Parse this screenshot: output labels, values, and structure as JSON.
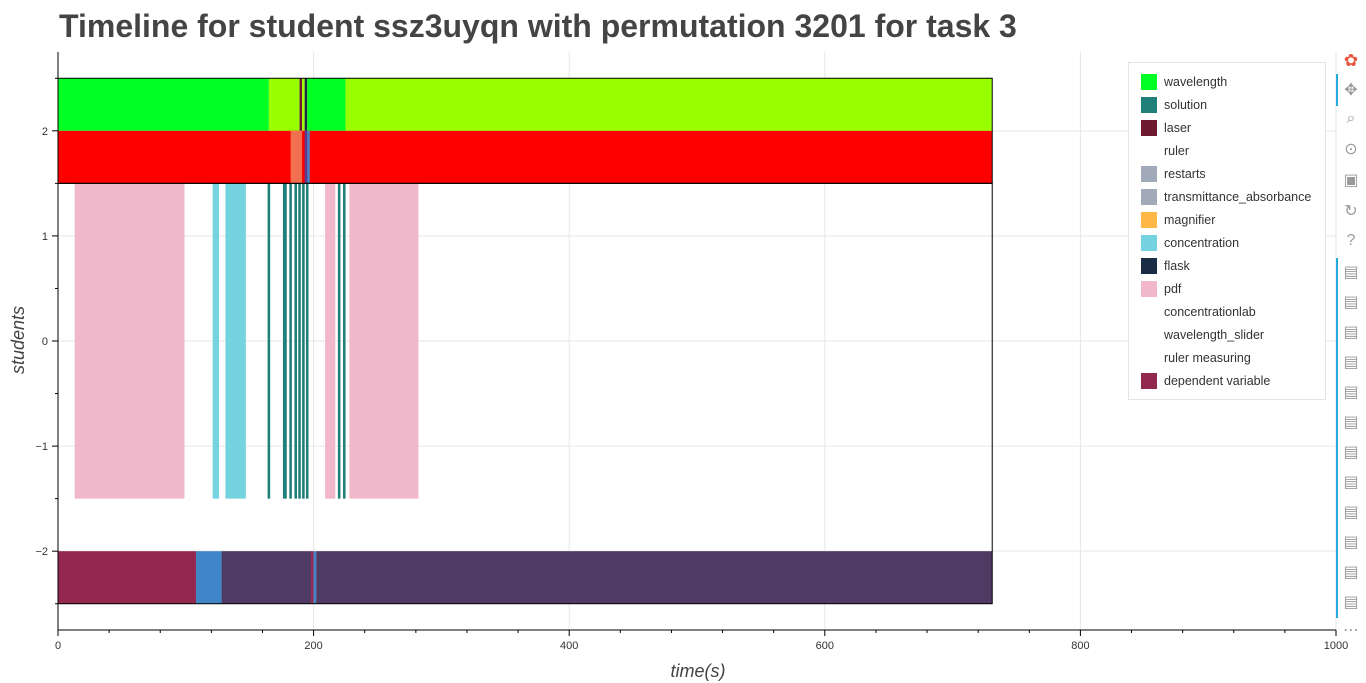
{
  "chart_data": {
    "type": "timeline",
    "title": "Timeline for student ssz3uyqn with permutation 3201 for task 3",
    "xlabel": "time(s)",
    "ylabel": "students",
    "xlim": [
      0,
      1000
    ],
    "ylim": [
      -2.75,
      2.75
    ],
    "x_ticks": [
      0,
      200,
      400,
      600,
      800,
      1000
    ],
    "y_ticks": [
      2,
      1,
      0,
      -1,
      -2
    ],
    "y_tick_labels": [
      "2",
      "1",
      "0",
      "−1",
      "−2"
    ],
    "grid": true,
    "legend_position": "top-right",
    "colors": {
      "wavelength": "#00ff22",
      "wavelength_alt": "#99ff00",
      "red_band": "#ff0000",
      "solution": "#1e8078",
      "laser": "#6e1a30",
      "ruler": "#ffffff",
      "restarts": "#a0aab8",
      "transmittance_absorbance": "#a0aab8",
      "magnifier": "#ffb845",
      "concentration": "#74d3de",
      "flask": "#1b2d45",
      "pdf": "#f0b8ca",
      "dependent_variable": "#922850",
      "dependent_alt": "#4f3a63",
      "blue": "#3f85c8"
    },
    "legend": [
      {
        "label": "wavelength",
        "color": "#00ff22"
      },
      {
        "label": "solution",
        "color": "#1e8078"
      },
      {
        "label": "laser",
        "color": "#6e1a30"
      },
      {
        "label": "ruler",
        "color": "#ffffff"
      },
      {
        "label": "restarts",
        "color": "#a0aab8"
      },
      {
        "label": "transmittance_absorbance",
        "color": "#a0aab8"
      },
      {
        "label": "magnifier",
        "color": "#ffb845"
      },
      {
        "label": "concentration",
        "color": "#74d3de"
      },
      {
        "label": "flask",
        "color": "#1b2d45"
      },
      {
        "label": "pdf",
        "color": "#f0b8ca"
      },
      {
        "label": "concentrationlab",
        "color": "#ffffff"
      },
      {
        "label": "wavelength_slider",
        "color": "#ffffff"
      },
      {
        "label": "ruler measuring",
        "color": "#ffffff"
      },
      {
        "label": "dependent variable",
        "color": "#922850"
      }
    ],
    "bars": [
      {
        "row": "top",
        "start": 0,
        "end": 165,
        "y0": 2,
        "y1": 2.5,
        "color": "#00ff22"
      },
      {
        "row": "top",
        "start": 165,
        "end": 189,
        "y0": 2,
        "y1": 2.5,
        "color": "#99ff00"
      },
      {
        "row": "top",
        "start": 189,
        "end": 191,
        "y0": 2,
        "y1": 2.5,
        "color": "#6e1a30"
      },
      {
        "row": "top",
        "start": 191,
        "end": 193,
        "y0": 2,
        "y1": 2.5,
        "color": "#99ff00"
      },
      {
        "row": "top",
        "start": 193,
        "end": 195,
        "y0": 2,
        "y1": 2.5,
        "color": "#1b2d45"
      },
      {
        "row": "top",
        "start": 195,
        "end": 225,
        "y0": 2,
        "y1": 2.5,
        "color": "#00ff22"
      },
      {
        "row": "top",
        "start": 225,
        "end": 731,
        "y0": 2,
        "y1": 2.5,
        "color": "#99ff00"
      },
      {
        "row": "red",
        "start": 0,
        "end": 731,
        "y0": 1.5,
        "y1": 2,
        "color": "#ff0000"
      },
      {
        "row": "red",
        "start": 182,
        "end": 191,
        "y0": 1.5,
        "y1": 2,
        "color": "#f07050"
      },
      {
        "row": "red",
        "start": 193,
        "end": 195,
        "y0": 1.5,
        "y1": 2,
        "color": "#5a3a90"
      },
      {
        "row": "red",
        "start": 195,
        "end": 197,
        "y0": 1.5,
        "y1": 2,
        "color": "#3f85c8"
      },
      {
        "row": "mid",
        "start": 13,
        "end": 99,
        "y0": -1.5,
        "y1": 1.5,
        "color": "#f0b8ca"
      },
      {
        "row": "mid",
        "start": 121,
        "end": 126,
        "y0": -1.5,
        "y1": 1.5,
        "color": "#74d3de"
      },
      {
        "row": "mid",
        "start": 131,
        "end": 147,
        "y0": -1.5,
        "y1": 1.5,
        "color": "#74d3de"
      },
      {
        "row": "mid",
        "start": 164,
        "end": 166,
        "y0": -1.5,
        "y1": 1.5,
        "color": "#1e8078"
      },
      {
        "row": "mid",
        "start": 176,
        "end": 179,
        "y0": -1.5,
        "y1": 1.5,
        "color": "#1e8078"
      },
      {
        "row": "mid",
        "start": 181,
        "end": 183,
        "y0": -1.5,
        "y1": 1.5,
        "color": "#1e8078"
      },
      {
        "row": "mid",
        "start": 185,
        "end": 187,
        "y0": -1.5,
        "y1": 1.5,
        "color": "#1e8078"
      },
      {
        "row": "mid",
        "start": 188,
        "end": 190,
        "y0": -1.5,
        "y1": 1.5,
        "color": "#1e8078"
      },
      {
        "row": "mid",
        "start": 191,
        "end": 193,
        "y0": -1.5,
        "y1": 1.5,
        "color": "#1e8078"
      },
      {
        "row": "mid",
        "start": 194,
        "end": 196,
        "y0": -1.5,
        "y1": 1.5,
        "color": "#1e8078"
      },
      {
        "row": "mid",
        "start": 209,
        "end": 217,
        "y0": -1.5,
        "y1": 1.5,
        "color": "#f0b8ca"
      },
      {
        "row": "mid",
        "start": 219,
        "end": 221,
        "y0": -1.5,
        "y1": 1.5,
        "color": "#1e8078"
      },
      {
        "row": "mid",
        "start": 223,
        "end": 225,
        "y0": -1.5,
        "y1": 1.5,
        "color": "#1e8078"
      },
      {
        "row": "mid",
        "start": 228,
        "end": 282,
        "y0": -1.5,
        "y1": 1.5,
        "color": "#f0b8ca"
      },
      {
        "row": "bottom",
        "start": 0,
        "end": 108,
        "y0": -2.5,
        "y1": -2,
        "color": "#922850"
      },
      {
        "row": "bottom",
        "start": 108,
        "end": 128,
        "y0": -2.5,
        "y1": -2,
        "color": "#3f85c8"
      },
      {
        "row": "bottom",
        "start": 128,
        "end": 198,
        "y0": -2.5,
        "y1": -2,
        "color": "#4f3a63"
      },
      {
        "row": "bottom",
        "start": 198,
        "end": 200,
        "y0": -2.5,
        "y1": -2,
        "color": "#922850"
      },
      {
        "row": "bottom",
        "start": 200,
        "end": 202,
        "y0": -2.5,
        "y1": -2,
        "color": "#3f85c8"
      },
      {
        "row": "bottom",
        "start": 202,
        "end": 731,
        "y0": -2.5,
        "y1": -2,
        "color": "#4f3a63"
      }
    ],
    "outlines": [
      {
        "start": 0,
        "end": 731,
        "y0": 1.5,
        "y1": 2.5
      },
      {
        "start": 0,
        "end": 731,
        "y0": -2.5,
        "y1": 1.5
      }
    ]
  },
  "toolbar": {
    "tools": [
      {
        "name": "bokeh-logo-icon",
        "glyph": "✿"
      },
      {
        "name": "pan-icon",
        "glyph": "✥"
      },
      {
        "name": "box-zoom-icon",
        "glyph": "⌕"
      },
      {
        "name": "wheel-zoom-icon",
        "glyph": "⊙"
      },
      {
        "name": "save-icon",
        "glyph": "▣"
      },
      {
        "name": "reset-icon",
        "glyph": "↻"
      },
      {
        "name": "help-icon",
        "glyph": "?"
      },
      {
        "name": "hover-icon",
        "glyph": "▤"
      },
      {
        "name": "hover-icon",
        "glyph": "▤"
      },
      {
        "name": "hover-icon",
        "glyph": "▤"
      },
      {
        "name": "hover-icon",
        "glyph": "▤"
      },
      {
        "name": "hover-icon",
        "glyph": "▤"
      },
      {
        "name": "hover-icon",
        "glyph": "▤"
      },
      {
        "name": "hover-icon",
        "glyph": "▤"
      },
      {
        "name": "hover-icon",
        "glyph": "▤"
      },
      {
        "name": "hover-icon",
        "glyph": "▤"
      },
      {
        "name": "hover-icon",
        "glyph": "▤"
      },
      {
        "name": "hover-icon",
        "glyph": "▤"
      },
      {
        "name": "hover-icon",
        "glyph": "▤"
      },
      {
        "name": "more-icon",
        "glyph": "⋯"
      }
    ]
  }
}
